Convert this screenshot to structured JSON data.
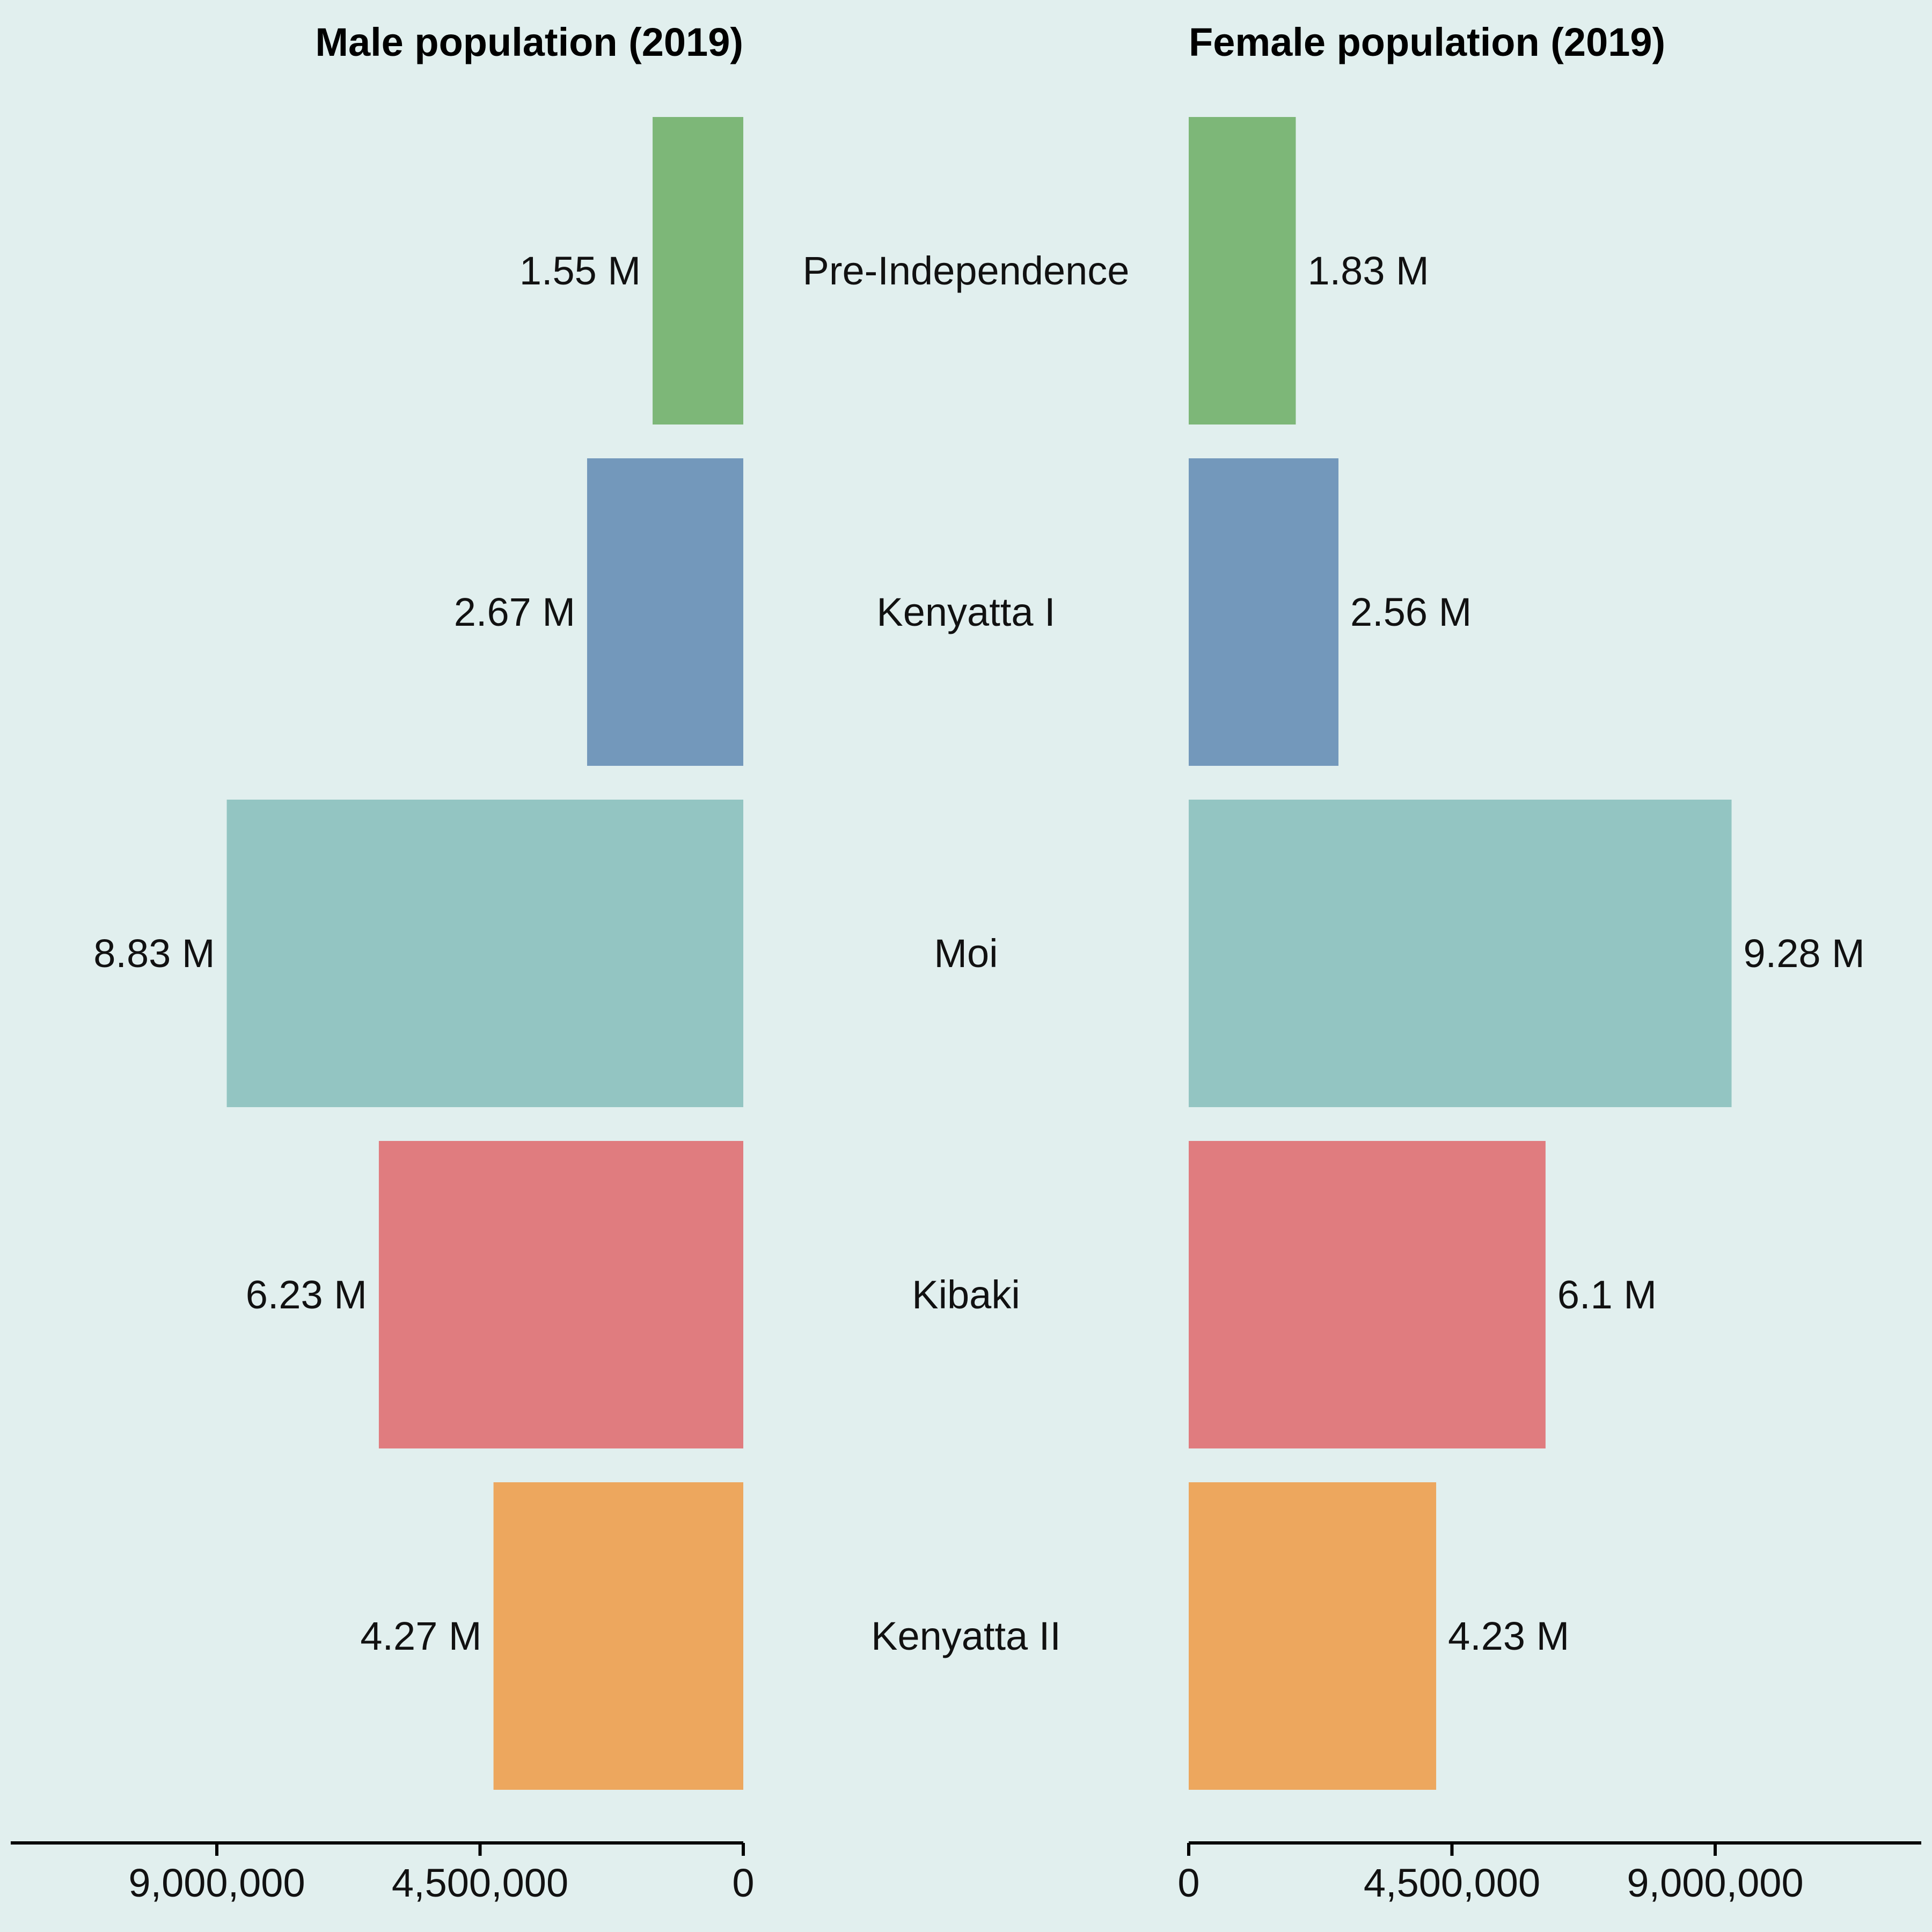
{
  "chart_data": {
    "type": "bar",
    "orientation": "horizontal-back-to-back",
    "categories": [
      "Pre-Independence",
      "Kenyatta I",
      "Moi",
      "Kibaki",
      "Kenyatta II"
    ],
    "colors": [
      "#7db778",
      "#7398bb",
      "#93c5c2",
      "#e07c7f",
      "#eda75e"
    ],
    "xlim": [
      0,
      11700000
    ],
    "grid": false,
    "panels": [
      {
        "title": "Male population (2019)",
        "direction": "left",
        "values": [
          1550000,
          2670000,
          8830000,
          6230000,
          4270000
        ],
        "labels": [
          "1.55 M",
          "2.67 M",
          "8.83 M",
          "6.23 M",
          "4.27 M"
        ],
        "ticks": [
          {
            "value": 9000000,
            "label": "9,000,000"
          },
          {
            "value": 4500000,
            "label": "4,500,000"
          },
          {
            "value": 0,
            "label": "0"
          }
        ]
      },
      {
        "title": "Female population (2019)",
        "direction": "right",
        "values": [
          1830000,
          2560000,
          9280000,
          6100000,
          4230000
        ],
        "labels": [
          "1.83 M",
          "2.56 M",
          "9.28 M",
          "6.1 M",
          "4.23 M"
        ],
        "ticks": [
          {
            "value": 0,
            "label": "0"
          },
          {
            "value": 4500000,
            "label": "4,500,000"
          },
          {
            "value": 9000000,
            "label": "9,000,000"
          }
        ]
      }
    ]
  }
}
